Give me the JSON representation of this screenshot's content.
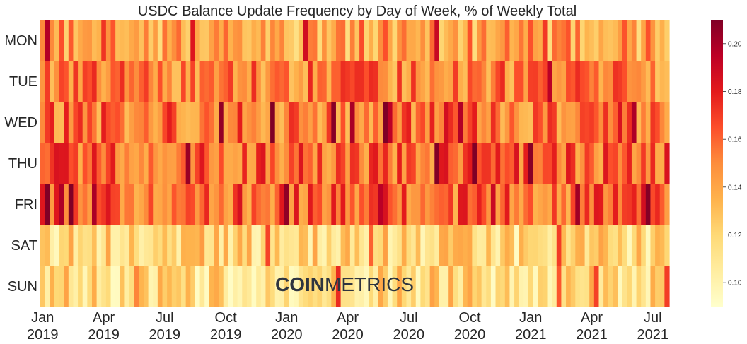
{
  "chart_data": {
    "type": "heatmap",
    "title": "USDC Balance Update Frequency by Day of Week, % of Weekly Total",
    "rows": [
      "MON",
      "TUE",
      "WED",
      "THU",
      "FRI",
      "SAT",
      "SUN"
    ],
    "x_ticks": [
      {
        "month": "Jan",
        "year": "2019",
        "week": 0
      },
      {
        "month": "Apr",
        "year": "2019",
        "week": 13
      },
      {
        "month": "Jul",
        "year": "2019",
        "week": 26
      },
      {
        "month": "Oct",
        "year": "2019",
        "week": 39
      },
      {
        "month": "Jan",
        "year": "2020",
        "week": 52
      },
      {
        "month": "Apr",
        "year": "2020",
        "week": 65
      },
      {
        "month": "Jul",
        "year": "2020",
        "week": 78
      },
      {
        "month": "Oct",
        "year": "2020",
        "week": 91
      },
      {
        "month": "Jan",
        "year": "2021",
        "week": 104
      },
      {
        "month": "Apr",
        "year": "2021",
        "week": 117
      },
      {
        "month": "Jul",
        "year": "2021",
        "week": 130
      }
    ],
    "weeks": 134,
    "row_means": [
      0.14,
      0.152,
      0.155,
      0.16,
      0.158,
      0.118,
      0.117
    ],
    "colorbar": {
      "min": 0.09,
      "max": 0.21,
      "ticks": [
        "0.10",
        "0.12",
        "0.14",
        "0.16",
        "0.18",
        "0.20"
      ]
    },
    "colormap": "YlOrRd"
  },
  "watermark": {
    "bold": "COIN",
    "light": "METRICS"
  }
}
